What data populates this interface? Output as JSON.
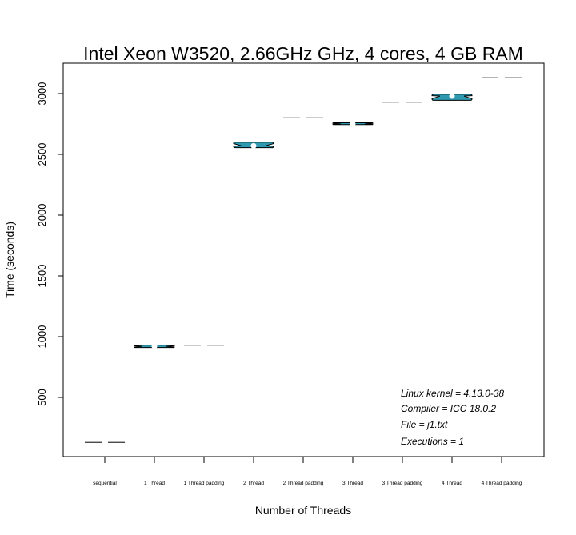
{
  "chart_data": {
    "type": "violin",
    "title": "Intel Xeon W3520, 2.66GHz GHz, 4 cores, 4 GB RAM",
    "xlabel": "Number of Threads",
    "ylabel": "Time (seconds)",
    "categories": [
      "sequential",
      "1 Thread",
      "1 Thread padding",
      "2 Thread",
      "2 Thread padding",
      "3 Thread",
      "3 Thread padding",
      "4 Thread",
      "4 Thread padding"
    ],
    "values": [
      130,
      920,
      930,
      2570,
      2800,
      2750,
      2930,
      2980,
      3130
    ],
    "ranges": [
      [
        130,
        130
      ],
      [
        910,
        930
      ],
      [
        930,
        930
      ],
      [
        2555,
        2600
      ],
      [
        2800,
        2800
      ],
      [
        2745,
        2760
      ],
      [
        2930,
        2930
      ],
      [
        2945,
        2995
      ],
      [
        3130,
        3130
      ]
    ],
    "ylim": [
      0,
      3250
    ],
    "yticks": [
      500,
      1000,
      1500,
      2000,
      2500,
      3000
    ],
    "violin_color": "#2f9aaf",
    "annotations": [
      "Linux kernel = 4.13.0-38",
      "Compiler = ICC 18.0.2",
      "File = j1.txt",
      "Executions = 1"
    ]
  }
}
